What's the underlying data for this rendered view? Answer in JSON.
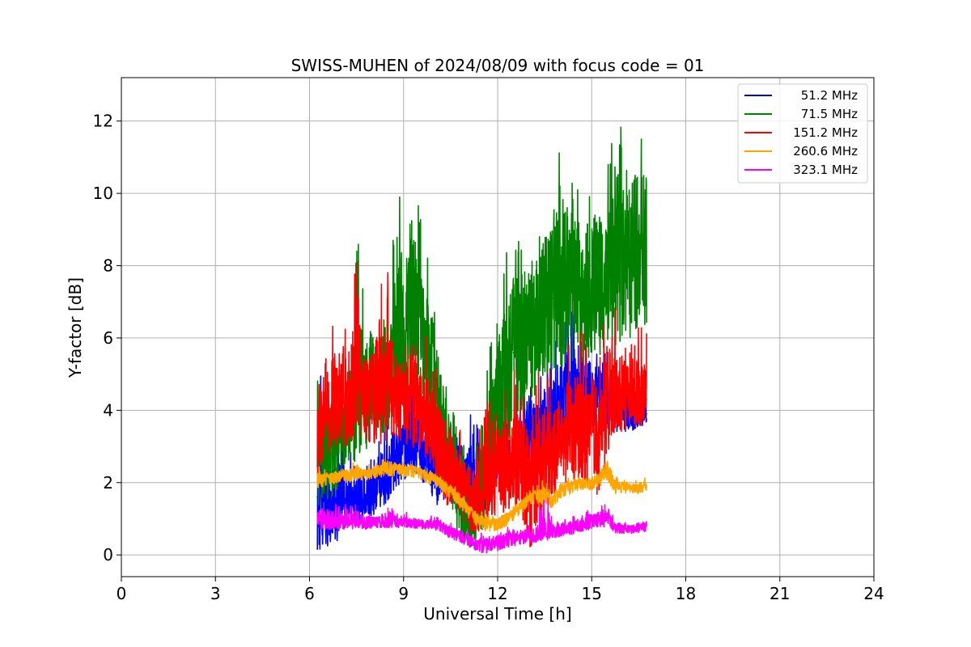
{
  "chart_data": {
    "type": "line",
    "title": "SWISS-MUHEN of 2024/08/09 with focus code = 01",
    "xlabel": "Universal Time [h]",
    "ylabel": "Y-factor [dB]",
    "xlim": [
      0,
      24
    ],
    "ylim": [
      -0.6,
      13.2
    ],
    "xticks": [
      0,
      3,
      6,
      9,
      12,
      15,
      18,
      21,
      24
    ],
    "yticks": [
      0,
      2,
      4,
      6,
      8,
      10,
      12
    ],
    "grid": true,
    "legend_position": "top-right",
    "series": [
      {
        "name": "51.2 MHz",
        "color": "#0000ff",
        "x": [
          6.25,
          6.5,
          6.75,
          7.0,
          7.25,
          7.5,
          7.75,
          8.0,
          8.25,
          8.5,
          8.75,
          9.0,
          9.25,
          9.5,
          9.75,
          10.0,
          10.25,
          10.5,
          10.75,
          11.0,
          11.25,
          11.5,
          11.75,
          12.0,
          12.25,
          12.5,
          12.75,
          13.0,
          13.25,
          13.5,
          13.75,
          14.0,
          14.25,
          14.5,
          14.75,
          15.0,
          15.25,
          15.5,
          15.75,
          16.0,
          16.25,
          16.5,
          16.75
        ],
        "y": [
          1.6,
          0.9,
          0.8,
          1.3,
          1.6,
          1.4,
          1.5,
          1.6,
          1.9,
          2.2,
          2.7,
          3.2,
          3.4,
          3.1,
          2.9,
          2.5,
          2.8,
          2.9,
          2.7,
          2.4,
          1.6,
          2.2,
          2.5,
          2.7,
          2.6,
          2.5,
          3.0,
          3.4,
          3.2,
          3.5,
          3.7,
          4.0,
          4.3,
          4.5,
          4.2,
          4.4,
          4.5,
          4.3,
          4.1,
          4.0,
          3.9,
          3.8,
          3.9
        ],
        "y_min": [
          0.05,
          0.3,
          0.1,
          0.6,
          0.9,
          0.9,
          1.0,
          1.1,
          1.2,
          1.5,
          1.8,
          2.0,
          2.3,
          2.2,
          1.8,
          1.3,
          1.5,
          1.4,
          1.2,
          0.8,
          0.5,
          1.0,
          1.6,
          1.9,
          2.0,
          2.0,
          1.9,
          2.1,
          2.2,
          2.3,
          2.6,
          2.8,
          3.0,
          3.2,
          3.4,
          3.5,
          3.6,
          3.5,
          3.4,
          3.4,
          3.4,
          3.5,
          3.6
        ],
        "y_max": [
          5.6,
          4.7,
          4.0,
          3.6,
          3.0,
          3.0,
          3.0,
          3.2,
          3.5,
          4.0,
          4.2,
          4.4,
          4.6,
          4.3,
          4.0,
          3.7,
          3.5,
          3.7,
          3.5,
          3.2,
          5.1,
          3.7,
          3.7,
          3.6,
          3.6,
          3.7,
          4.6,
          5.3,
          5.0,
          5.4,
          6.1,
          6.6,
          6.9,
          6.7,
          6.5,
          6.2,
          5.8,
          5.6,
          5.4,
          5.3,
          5.2,
          5.2,
          5.3
        ]
      },
      {
        "name": "71.5 MHz",
        "color": "#008000",
        "x": [
          6.25,
          6.5,
          6.75,
          7.0,
          7.25,
          7.5,
          7.75,
          8.0,
          8.25,
          8.5,
          8.75,
          9.0,
          9.25,
          9.5,
          9.75,
          10.0,
          10.25,
          10.5,
          10.75,
          11.0,
          11.25,
          11.5,
          11.75,
          12.0,
          12.25,
          12.5,
          12.75,
          13.0,
          13.25,
          13.5,
          13.75,
          14.0,
          14.25,
          14.5,
          14.75,
          15.0,
          15.25,
          15.5,
          15.75,
          16.0,
          16.25,
          16.5,
          16.75
        ],
        "y": [
          3.0,
          3.2,
          3.1,
          3.5,
          3.8,
          4.2,
          4.5,
          4.8,
          4.7,
          4.9,
          5.6,
          6.2,
          6.6,
          6.8,
          5.6,
          4.6,
          3.6,
          2.8,
          2.0,
          1.4,
          1.3,
          2.0,
          3.2,
          4.2,
          5.0,
          5.6,
          6.0,
          6.4,
          6.6,
          6.9,
          7.1,
          7.3,
          7.6,
          7.6,
          7.5,
          7.5,
          7.7,
          7.9,
          8.0,
          8.1,
          8.2,
          8.3,
          8.4
        ],
        "y_min": [
          1.2,
          1.4,
          1.6,
          2.0,
          2.4,
          2.6,
          2.8,
          3.0,
          3.2,
          3.5,
          3.9,
          4.2,
          4.5,
          4.4,
          3.6,
          2.6,
          1.6,
          1.0,
          0.5,
          0.2,
          0.2,
          0.6,
          1.4,
          2.2,
          2.8,
          3.4,
          3.8,
          4.2,
          4.5,
          4.7,
          4.8,
          5.1,
          5.4,
          5.4,
          5.3,
          5.4,
          5.5,
          5.6,
          5.8,
          5.9,
          6.0,
          6.2,
          6.4
        ],
        "y_max": [
          4.8,
          5.2,
          5.3,
          5.6,
          6.0,
          9.8,
          6.8,
          7.2,
          7.0,
          7.2,
          9.6,
          10.4,
          11.0,
          9.8,
          8.4,
          7.0,
          5.6,
          4.5,
          3.5,
          2.8,
          2.7,
          4.0,
          5.9,
          7.2,
          8.4,
          9.2,
          9.3,
          9.4,
          9.6,
          10.3,
          10.9,
          12.2,
          11.2,
          10.8,
          10.2,
          11.1,
          10.7,
          11.2,
          11.6,
          12.0,
          12.5,
          12.4,
          12.4
        ]
      },
      {
        "name": "151.2 MHz",
        "color": "#ff0000",
        "x": [
          6.25,
          6.5,
          6.75,
          7.0,
          7.25,
          7.5,
          7.75,
          8.0,
          8.25,
          8.5,
          8.75,
          9.0,
          9.25,
          9.5,
          9.75,
          10.0,
          10.25,
          10.5,
          10.75,
          11.0,
          11.25,
          11.5,
          11.75,
          12.0,
          12.25,
          12.5,
          12.75,
          13.0,
          13.25,
          13.5,
          13.75,
          14.0,
          14.25,
          14.5,
          14.75,
          15.0,
          15.25,
          15.5,
          15.75,
          16.0,
          16.25,
          16.5,
          16.75
        ],
        "y": [
          3.2,
          4.2,
          4.4,
          4.5,
          4.2,
          4.8,
          4.6,
          4.4,
          4.5,
          4.7,
          4.6,
          4.3,
          4.4,
          4.1,
          3.7,
          3.3,
          2.8,
          2.4,
          2.0,
          1.6,
          1.6,
          1.8,
          2.1,
          2.3,
          2.4,
          2.5,
          2.2,
          1.6,
          2.0,
          2.4,
          2.6,
          3.0,
          3.4,
          3.5,
          3.4,
          3.3,
          3.6,
          4.0,
          4.0,
          4.2,
          4.2,
          4.3,
          4.3
        ],
        "y_min": [
          1.8,
          2.8,
          2.8,
          3.0,
          3.0,
          3.4,
          3.2,
          3.0,
          3.0,
          3.2,
          3.2,
          3.0,
          3.0,
          2.8,
          2.6,
          2.0,
          1.6,
          1.2,
          1.0,
          0.7,
          0.6,
          0.7,
          0.9,
          1.1,
          1.2,
          1.3,
          0.9,
          0.1,
          0.6,
          1.2,
          1.6,
          1.8,
          2.0,
          2.1,
          2.0,
          2.0,
          1.5,
          2.8,
          3.4,
          3.4,
          3.5,
          3.5,
          3.6
        ],
        "y_max": [
          4.6,
          6.4,
          6.7,
          6.5,
          6.4,
          9.0,
          6.4,
          6.6,
          8.3,
          7.9,
          6.4,
          6.2,
          7.0,
          6.0,
          6.2,
          5.2,
          4.8,
          4.4,
          3.6,
          3.2,
          3.0,
          4.2,
          4.4,
          4.6,
          4.8,
          5.4,
          5.0,
          4.8,
          5.3,
          5.4,
          5.5,
          5.6,
          5.8,
          6.0,
          6.4,
          7.0,
          5.4,
          7.4,
          7.0,
          6.3,
          6.4,
          6.5,
          6.5
        ]
      },
      {
        "name": "260.6 MHz",
        "color": "#ffa500",
        "x": [
          6.25,
          6.5,
          6.75,
          7.0,
          7.25,
          7.5,
          7.75,
          8.0,
          8.25,
          8.5,
          8.75,
          9.0,
          9.25,
          9.5,
          9.75,
          10.0,
          10.25,
          10.5,
          10.75,
          11.0,
          11.25,
          11.5,
          11.75,
          12.0,
          12.25,
          12.5,
          12.75,
          13.0,
          13.25,
          13.5,
          13.75,
          14.0,
          14.25,
          14.5,
          14.75,
          15.0,
          15.25,
          15.5,
          15.75,
          16.0,
          16.25,
          16.5,
          16.75
        ],
        "y": [
          2.05,
          2.1,
          2.15,
          2.2,
          2.2,
          2.25,
          2.25,
          2.3,
          2.35,
          2.35,
          2.4,
          2.35,
          2.35,
          2.3,
          2.2,
          2.1,
          1.95,
          1.8,
          1.6,
          1.35,
          1.1,
          0.95,
          0.85,
          0.9,
          1.0,
          1.15,
          1.35,
          1.55,
          1.7,
          1.6,
          1.55,
          1.8,
          1.9,
          1.95,
          2.0,
          2.0,
          2.1,
          2.35,
          1.95,
          1.9,
          1.85,
          1.85,
          1.9
        ],
        "y_min": [
          1.85,
          1.9,
          1.95,
          2.0,
          2.0,
          2.05,
          2.05,
          2.1,
          2.15,
          2.15,
          2.2,
          2.15,
          2.15,
          2.1,
          2.0,
          1.9,
          1.75,
          1.55,
          1.35,
          1.1,
          0.85,
          0.7,
          0.6,
          0.65,
          0.75,
          0.95,
          1.15,
          1.3,
          1.45,
          1.35,
          1.3,
          1.55,
          1.65,
          1.75,
          1.8,
          1.8,
          1.9,
          2.0,
          1.7,
          1.7,
          1.7,
          1.7,
          1.75
        ],
        "y_max": [
          2.6,
          2.4,
          2.4,
          2.45,
          2.5,
          2.6,
          2.5,
          2.5,
          2.6,
          2.9,
          2.7,
          2.6,
          2.6,
          2.5,
          2.45,
          2.35,
          2.2,
          2.05,
          1.85,
          1.6,
          1.35,
          1.2,
          1.1,
          1.15,
          1.25,
          1.4,
          1.6,
          1.8,
          2.0,
          2.2,
          1.8,
          2.1,
          2.15,
          2.2,
          2.25,
          2.3,
          2.4,
          2.9,
          2.2,
          2.1,
          2.05,
          2.1,
          2.2
        ]
      },
      {
        "name": "323.1 MHz",
        "color": "#ff00ff",
        "x": [
          6.25,
          6.5,
          6.75,
          7.0,
          7.25,
          7.5,
          7.75,
          8.0,
          8.25,
          8.5,
          8.75,
          9.0,
          9.25,
          9.5,
          9.75,
          10.0,
          10.25,
          10.5,
          10.75,
          11.0,
          11.25,
          11.5,
          11.75,
          12.0,
          12.25,
          12.5,
          12.75,
          13.0,
          13.25,
          13.5,
          13.75,
          14.0,
          14.25,
          14.5,
          14.75,
          15.0,
          15.25,
          15.5,
          15.75,
          16.0,
          16.25,
          16.5,
          16.75
        ],
        "y": [
          1.0,
          0.9,
          0.85,
          0.85,
          0.85,
          0.9,
          0.85,
          0.9,
          0.9,
          0.9,
          0.9,
          0.9,
          0.9,
          0.85,
          0.85,
          0.85,
          0.8,
          0.65,
          0.55,
          0.45,
          0.35,
          0.3,
          0.3,
          0.35,
          0.4,
          0.45,
          0.5,
          0.5,
          0.55,
          0.6,
          0.65,
          0.7,
          0.75,
          0.8,
          0.9,
          0.95,
          1.0,
          1.1,
          0.75,
          0.75,
          0.75,
          0.75,
          0.8
        ],
        "y_min": [
          0.7,
          0.7,
          0.7,
          0.7,
          0.7,
          0.75,
          0.7,
          0.75,
          0.75,
          0.75,
          0.75,
          0.75,
          0.75,
          0.7,
          0.7,
          0.7,
          0.6,
          0.45,
          0.35,
          0.25,
          0.15,
          0.05,
          0.05,
          0.1,
          0.2,
          0.25,
          0.3,
          0.3,
          0.35,
          0.4,
          0.45,
          0.5,
          0.55,
          0.6,
          0.65,
          0.7,
          0.75,
          0.8,
          0.6,
          0.6,
          0.6,
          0.6,
          0.65
        ],
        "y_max": [
          1.6,
          1.6,
          1.5,
          1.4,
          1.4,
          1.6,
          1.3,
          1.2,
          1.2,
          1.6,
          1.2,
          1.2,
          1.2,
          1.1,
          1.1,
          1.1,
          1.0,
          0.9,
          0.8,
          0.7,
          0.6,
          0.6,
          0.65,
          0.7,
          0.75,
          0.8,
          0.85,
          0.85,
          0.9,
          2.5,
          1.0,
          1.0,
          1.05,
          1.1,
          1.3,
          1.3,
          1.35,
          1.45,
          0.95,
          0.9,
          0.9,
          0.9,
          0.95
        ]
      }
    ]
  }
}
